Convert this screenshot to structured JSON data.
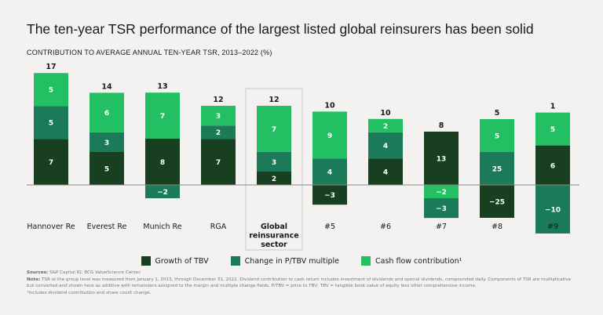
{
  "title": "The ten-year TSR performance of the largest listed global reinsurers has been solid",
  "chart_data": {
    "type": "bar",
    "stacked": true,
    "title": "CONTRIBUTION TO AVERAGE ANNUAL TEN-YEAR TSR, 2013–2022 (%)",
    "categories": [
      "Hannover Re",
      "Everest Re",
      "Munich Re",
      "RGA",
      "Global reinsurance sector",
      "#5",
      "#6",
      "#7",
      "#8",
      "#9"
    ],
    "highlighted_category": "Global reinsurance sector",
    "totals": [
      17,
      14,
      13,
      12,
      12,
      10,
      10,
      8,
      5,
      1
    ],
    "series": [
      {
        "name": "Growth of TBV",
        "color": "#173f20",
        "values": [
          7,
          5,
          8,
          7,
          2,
          -3,
          4,
          13,
          -25,
          6
        ]
      },
      {
        "name": "Change in P/TBV multiple",
        "color": "#1b7a58",
        "values": [
          5,
          3,
          -2,
          2,
          3,
          4,
          4,
          -3,
          25,
          -10
        ]
      },
      {
        "name": "Cash flow contribution¹",
        "color": "#22c062",
        "values": [
          5,
          6,
          7,
          3,
          7,
          9,
          2,
          -2,
          5,
          5
        ]
      }
    ],
    "legend_position": "bottom",
    "grid": false,
    "scale_note": "bars not drawn to scale"
  },
  "footnotes": {
    "sources_label": "Sources:",
    "sources": "S&P Capital IQ; BCG ValueScience Center.",
    "note_label": "Note:",
    "note": "TSR at the group level was measured from January 1, 2013, through December 31, 2022. Dividend contribution to cash return includes investment of dividends and special dividends, compounded daily. Components of TSR are multiplicative but converted and shown here as additive with remainders assigned to the margin and multiple change fields. P/TBV = price to TBV; TBV = tangible book value of equity less other comprehensive income.",
    "footnote1": "¹Includes dividend contribution and share count change."
  }
}
